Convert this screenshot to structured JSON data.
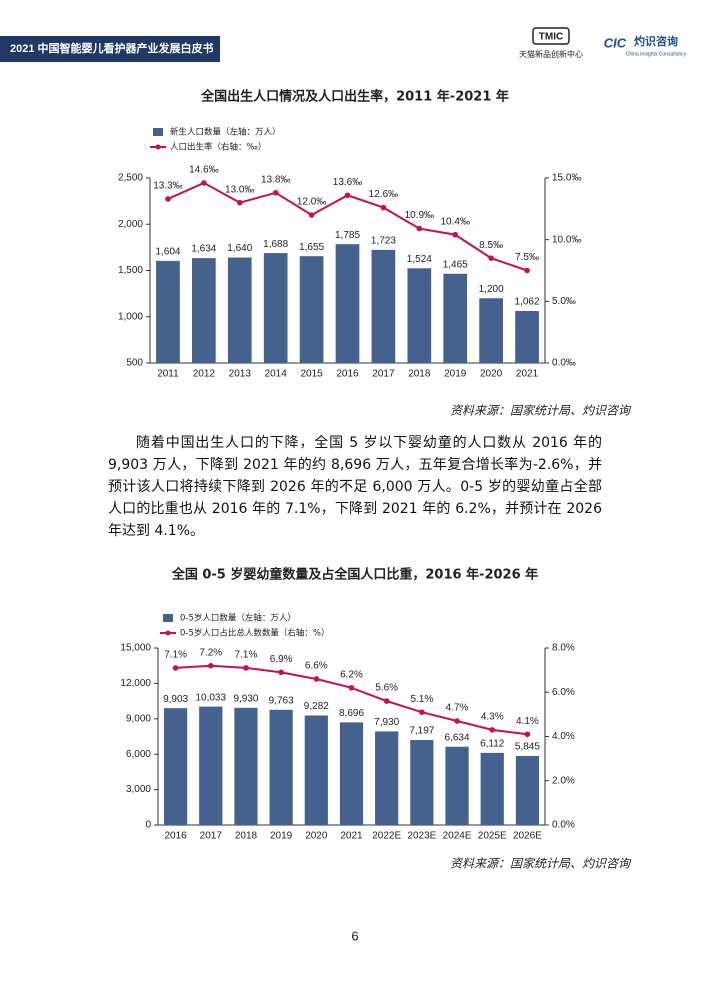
{
  "header": {
    "title": "2021 中国智能婴儿看护器产业发展白皮书",
    "logo1": "TMIC",
    "logo1_sub": "天猫新品创新中心",
    "logo2": "CIC",
    "logo2_name": "灼识咨询",
    "logo2_sub": "China Insights Consultancy"
  },
  "chart_data": [
    {
      "type": "combo",
      "title": "全国出生人口情况及人口出生率，2011 年-2021 年",
      "categories": [
        "2011",
        "2012",
        "2013",
        "2014",
        "2015",
        "2016",
        "2017",
        "2018",
        "2019",
        "2020",
        "2021"
      ],
      "series": [
        {
          "name": "新生人口数量（左轴：万人）",
          "color": "#45628f",
          "values": [
            1604,
            1634,
            1640,
            1688,
            1655,
            1785,
            1723,
            1524,
            1465,
            1200,
            1062
          ],
          "value_labels": [
            "1,604",
            "1,634",
            "1,640",
            "1,688",
            "1,655",
            "1,785",
            "1,723",
            "1,524",
            "1,465",
            "1,200",
            "1,062"
          ]
        },
        {
          "name": "人口出生率（右轴：‰）",
          "color": "#c0134f",
          "axis": "y2",
          "values": [
            13.3,
            14.6,
            13.0,
            13.8,
            12.0,
            13.6,
            12.6,
            10.9,
            10.4,
            8.5,
            7.5
          ],
          "value_labels": [
            "13.3‰",
            "14.6‰",
            "13.0‰",
            "13.8‰",
            "12.0‰",
            "13.6‰",
            "12.6‰",
            "10.9‰",
            "10.4‰",
            "8.5‰",
            "7.5‰"
          ]
        }
      ],
      "ylim": [
        500,
        2500
      ],
      "yticks": [
        500,
        {
          "value": 1000,
          "label": "1,000"
        },
        {
          "value": 1500,
          "label": "1,500"
        },
        {
          "value": 2000,
          "label": "2,000"
        },
        {
          "value": 2500,
          "label": "2,500"
        }
      ],
      "y2lim": [
        0,
        15
      ],
      "y2ticks": [
        {
          "value": 0,
          "label": "0.0‰"
        },
        {
          "value": 5,
          "label": "5.0‰"
        },
        {
          "value": 10,
          "label": "10.0‰"
        },
        {
          "value": 15,
          "label": "15.0‰"
        }
      ],
      "source": "资料来源：国家统计局、灼识咨询"
    },
    {
      "type": "combo",
      "title": "全国 0-5 岁婴幼童数量及占全国人口比重，2016 年-2026 年",
      "categories": [
        "2016",
        "2017",
        "2018",
        "2019",
        "2020",
        "2021",
        "2022E",
        "2023E",
        "2024E",
        "2025E",
        "2026E"
      ],
      "series": [
        {
          "name": "0-5岁人口数量（左轴：万人）",
          "color": "#45628f",
          "values": [
            9903,
            10033,
            9930,
            9763,
            9282,
            8696,
            7930,
            7197,
            6634,
            6112,
            5845
          ],
          "value_labels": [
            "9,903",
            "10,033",
            "9,930",
            "9,763",
            "9,282",
            "8,696",
            "7,930",
            "7,197",
            "6,634",
            "6,112",
            "5,845"
          ]
        },
        {
          "name": "0-5岁人口占比总人数数量（右轴：%）",
          "color": "#c0134f",
          "axis": "y2",
          "values": [
            7.1,
            7.2,
            7.1,
            6.9,
            6.6,
            6.2,
            5.6,
            5.1,
            4.7,
            4.3,
            4.1
          ],
          "value_labels": [
            "7.1%",
            "7.2%",
            "7.1%",
            "6.9%",
            "6.6%",
            "6.2%",
            "5.6%",
            "5.1%",
            "4.7%",
            "4.3%",
            "4.1%"
          ]
        }
      ],
      "ylim": [
        0,
        15000
      ],
      "yticks": [
        0,
        {
          "value": 3000,
          "label": "3,000"
        },
        {
          "value": 6000,
          "label": "6,000"
        },
        {
          "value": 9000,
          "label": "9,000"
        },
        {
          "value": 12000,
          "label": "12,000"
        },
        {
          "value": 15000,
          "label": "15,000"
        }
      ],
      "y2lim": [
        0,
        8
      ],
      "y2ticks": [
        {
          "value": 0,
          "label": "0.0%"
        },
        {
          "value": 2,
          "label": "2.0%"
        },
        {
          "value": 4,
          "label": "4.0%"
        },
        {
          "value": 6,
          "label": "6.0%"
        },
        {
          "value": 8,
          "label": "8.0%"
        }
      ],
      "source": "资料来源：国家统计局、灼识咨询"
    }
  ],
  "paragraph": "随着中国出生人口的下降，全国 5 岁以下婴幼童的人口数从 2016 年的 9,903 万人，下降到 2021 年的约 8,696 万人，五年复合增长率为-2.6%，并预计该人口将持续下降到 2026 年的不足 6,000 万人。0-5 岁的婴幼童占全部人口的比重也从 2016 年的 7.1%，下降到 2021 年的 6.2%，并预计在 2026 年达到 4.1%。",
  "page_number": "6"
}
